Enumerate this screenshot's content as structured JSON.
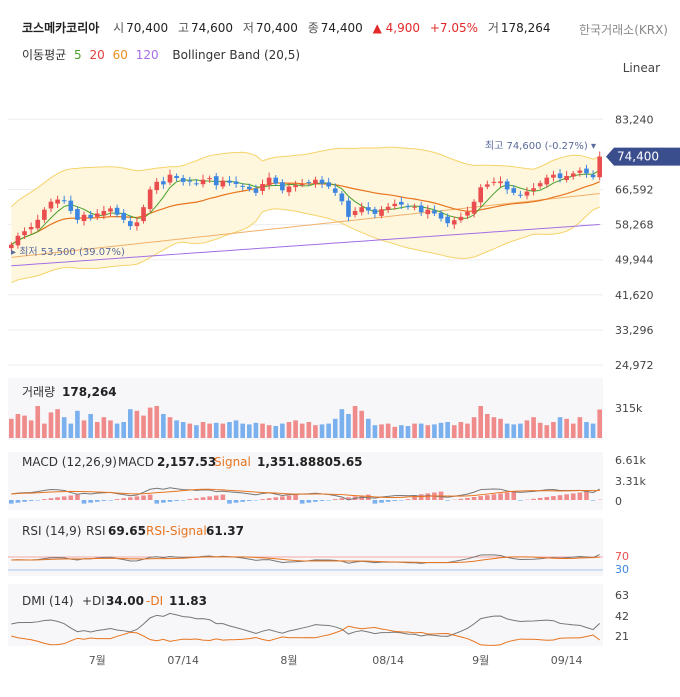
{
  "header": {
    "name": "코스메카코리아",
    "open_label": "시",
    "open": "70,400",
    "high_label": "고",
    "high": "74,600",
    "low_label": "저",
    "low": "70,400",
    "close_label": "종",
    "close": "74,400",
    "change": "▲ 4,900",
    "change_pct": "+7.05%",
    "volume_label": "거",
    "volume": "178,264",
    "exchange": "한국거래소(KRX)"
  },
  "indicators": {
    "label": "이동평균",
    "ma": [
      "5",
      "20",
      "60",
      "120"
    ],
    "bollinger": "Bollinger Band (20,5)"
  },
  "scale_mode": "Linear",
  "colors": {
    "up": "#e94d4d",
    "down": "#3d86e0",
    "ma5": "#4aa02c",
    "ma20": "#e8741e",
    "ma60": "#f2b06a",
    "ma120": "#a36ee6",
    "band": "#fff7dd",
    "band_line": "#f5d36a",
    "current_tag": "#3a4d8c"
  },
  "chart_data": [
    {
      "type": "candlestick",
      "title": "",
      "x_ticks": [
        "7월",
        "07/14",
        "8월",
        "08/14",
        "9월",
        "09/14"
      ],
      "y_ticks": [
        24972,
        33296,
        41620,
        49944,
        58268,
        66592,
        74400,
        83240
      ],
      "y_tick_labels": [
        "24,972",
        "33,296",
        "41,620",
        "49,944",
        "58,268",
        "66,592",
        "74,400",
        "83,240"
      ],
      "ylim": [
        24972,
        89000
      ],
      "annotations": {
        "high": {
          "label": "최고 74,600 (-0.27%)",
          "value": 74600
        },
        "low": {
          "label": "최저 53,500 (39.07%)",
          "value": 53500
        },
        "current": {
          "label": "74,400",
          "value": 74400
        }
      },
      "ohlc_close": [
        53500,
        55600,
        56700,
        57700,
        59400,
        61800,
        63700,
        64200,
        63800,
        61500,
        59400,
        60600,
        59800,
        60900,
        61500,
        62100,
        60600,
        59400,
        57900,
        58800,
        62400,
        66600,
        68400,
        67800,
        70100,
        69300,
        68400,
        68500,
        68000,
        68900,
        69300,
        67600,
        68700,
        68200,
        67900,
        67400,
        66700,
        65800,
        67900,
        69400,
        68000,
        66400,
        67300,
        67600,
        67900,
        68200,
        68900,
        68000,
        67300,
        65800,
        63800,
        60100,
        61500,
        62400,
        61600,
        60800,
        61900,
        62500,
        63200,
        63000,
        62400,
        62500,
        61200,
        61800,
        60900,
        59700,
        58600,
        59300,
        60100,
        61300,
        63700,
        67100,
        67800,
        68400,
        68500,
        66600,
        65800,
        65300,
        66100,
        66900,
        68100,
        69400,
        70100,
        69300,
        69800,
        70400,
        71100,
        70400,
        69500,
        74400
      ]
    },
    {
      "type": "bar",
      "title": "거래량",
      "value_label": "178,264",
      "y_ticks": [
        "315k"
      ],
      "values": [
        120,
        150,
        140,
        110,
        200,
        90,
        160,
        180,
        130,
        90,
        170,
        110,
        150,
        100,
        130,
        110,
        90,
        100,
        180,
        170,
        140,
        190,
        200,
        150,
        130,
        110,
        100,
        90,
        80,
        100,
        90,
        95,
        90,
        100,
        110,
        90,
        85,
        95,
        90,
        80,
        75,
        90,
        100,
        110,
        90,
        100,
        80,
        85,
        90,
        120,
        180,
        150,
        200,
        170,
        120,
        80,
        85,
        90,
        70,
        80,
        75,
        90,
        90,
        80,
        85,
        95,
        100,
        80,
        100,
        90,
        130,
        200,
        150,
        130,
        120,
        90,
        85,
        90,
        110,
        130,
        95,
        80,
        100,
        130,
        120,
        90,
        130,
        100,
        90,
        178
      ]
    },
    {
      "type": "line",
      "title": "MACD (12,26,9)",
      "series": [
        {
          "name": "MACD",
          "last": "2,157.53"
        },
        {
          "name": "Signal",
          "last": "1,351.88805.65"
        }
      ],
      "y_ticks": [
        "6.61k",
        "3.31k",
        "0"
      ]
    },
    {
      "type": "line",
      "title": "RSI (14,9)",
      "series": [
        {
          "name": "RSI",
          "last": "69.65"
        },
        {
          "name": "RSI-Signal",
          "last": "61.37"
        }
      ],
      "y_ticks": [
        "70",
        "30"
      ]
    },
    {
      "type": "line",
      "title": "DMI (14)",
      "series": [
        {
          "name": "+DI",
          "last": "34.00"
        },
        {
          "name": "-DI",
          "last": "11.83"
        }
      ],
      "y_ticks": [
        "63",
        "42",
        "21"
      ]
    }
  ]
}
